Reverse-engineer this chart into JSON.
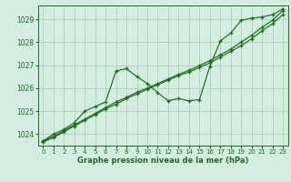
{
  "hours": [
    0,
    1,
    2,
    3,
    4,
    5,
    6,
    7,
    8,
    9,
    10,
    11,
    12,
    13,
    14,
    15,
    16,
    17,
    18,
    19,
    20,
    21,
    22,
    23
  ],
  "pressure_main": [
    1023.7,
    1024.0,
    1024.2,
    1024.5,
    1025.0,
    1025.2,
    1025.4,
    1026.75,
    1026.85,
    1026.5,
    1026.2,
    1025.8,
    1025.45,
    1025.55,
    1025.45,
    1025.5,
    1026.95,
    1028.05,
    1028.4,
    1028.95,
    1029.05,
    1029.1,
    1029.2,
    1029.45
  ],
  "pressure_trend1": [
    1023.65,
    1023.85,
    1024.1,
    1024.35,
    1024.6,
    1024.85,
    1025.1,
    1025.3,
    1025.55,
    1025.75,
    1025.95,
    1026.15,
    1026.35,
    1026.55,
    1026.7,
    1026.9,
    1027.1,
    1027.35,
    1027.6,
    1027.85,
    1028.15,
    1028.5,
    1028.8,
    1029.2
  ],
  "pressure_trend2": [
    1023.7,
    1023.9,
    1024.15,
    1024.4,
    1024.65,
    1024.9,
    1025.15,
    1025.4,
    1025.6,
    1025.82,
    1026.0,
    1026.2,
    1026.4,
    1026.6,
    1026.78,
    1026.98,
    1027.2,
    1027.45,
    1027.7,
    1028.0,
    1028.3,
    1028.65,
    1028.95,
    1029.38
  ],
  "line_color": "#1a6e1a",
  "bg_color": "#d4ede0",
  "grid_color": "#a8cab8",
  "xlabel": "Graphe pression niveau de la mer (hPa)",
  "ylim": [
    1023.5,
    1029.6
  ],
  "xlim": [
    -0.5,
    23.5
  ],
  "yticks": [
    1024,
    1025,
    1026,
    1027,
    1028,
    1029
  ],
  "xticks": [
    0,
    1,
    2,
    3,
    4,
    5,
    6,
    7,
    8,
    9,
    10,
    11,
    12,
    13,
    14,
    15,
    16,
    17,
    18,
    19,
    20,
    21,
    22,
    23
  ]
}
